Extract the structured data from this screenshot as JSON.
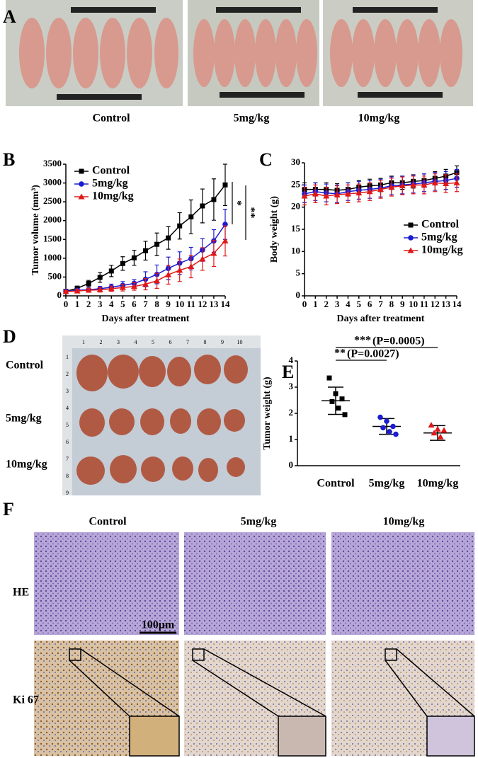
{
  "panel_labels": [
    "A",
    "B",
    "C",
    "D",
    "E",
    "F"
  ],
  "panel_a": {
    "groups": [
      "Control",
      "5mg/kg",
      "10mg/kg"
    ]
  },
  "chart_data": [
    {
      "type": "line",
      "y_label": "Tumor volume (mm³)",
      "x_label": "Days after treatment",
      "x": [
        0,
        1,
        2,
        3,
        4,
        5,
        6,
        7,
        8,
        9,
        10,
        11,
        12,
        13,
        14
      ],
      "xlim": [
        0,
        14
      ],
      "xticks": [
        0,
        1,
        2,
        3,
        4,
        5,
        6,
        7,
        8,
        9,
        10,
        11,
        12,
        13,
        14
      ],
      "ylim": [
        0,
        3500
      ],
      "yticks": [
        0,
        500,
        1000,
        1500,
        2000,
        2500,
        3000,
        3500
      ],
      "legend": "upper left",
      "significance": [
        "*",
        "**"
      ],
      "series": [
        {
          "name": "Control",
          "color": "#000000",
          "marker": "square",
          "values": [
            120,
            200,
            330,
            490,
            660,
            860,
            1010,
            1200,
            1370,
            1540,
            1860,
            2100,
            2390,
            2560,
            2950
          ],
          "errors": [
            50,
            60,
            80,
            130,
            150,
            180,
            200,
            250,
            300,
            300,
            350,
            450,
            450,
            550,
            550
          ]
        },
        {
          "name": "5mg/kg",
          "color": "#1c1cd0",
          "marker": "circle",
          "values": [
            120,
            150,
            160,
            190,
            230,
            280,
            330,
            440,
            570,
            730,
            870,
            990,
            1220,
            1460,
            1900
          ],
          "errors": [
            30,
            40,
            50,
            60,
            80,
            100,
            100,
            200,
            250,
            300,
            300,
            300,
            300,
            300,
            400
          ]
        },
        {
          "name": "10mg/kg",
          "color": "#e01818",
          "marker": "triangle",
          "values": [
            110,
            130,
            150,
            160,
            190,
            220,
            250,
            310,
            400,
            560,
            680,
            780,
            980,
            1130,
            1460
          ],
          "errors": [
            30,
            40,
            50,
            60,
            70,
            90,
            100,
            150,
            200,
            250,
            300,
            300,
            300,
            350,
            400
          ]
        }
      ]
    },
    {
      "type": "line",
      "y_label": "Body weight (g)",
      "x_label": "Days after treatment",
      "x": [
        0,
        1,
        2,
        3,
        4,
        5,
        6,
        7,
        8,
        9,
        10,
        11,
        12,
        13,
        14
      ],
      "xlim": [
        0,
        14
      ],
      "xticks": [
        0,
        1,
        2,
        3,
        4,
        5,
        6,
        7,
        8,
        9,
        10,
        11,
        12,
        13,
        14
      ],
      "ylim": [
        0,
        30
      ],
      "yticks": [
        0,
        5,
        10,
        15,
        20,
        25,
        30
      ],
      "legend": "lower right",
      "series": [
        {
          "name": "Control",
          "color": "#000000",
          "marker": "square",
          "values": [
            24,
            24,
            24,
            23.8,
            24,
            24.5,
            24.8,
            25,
            25.5,
            25.5,
            25.8,
            26,
            26.5,
            27,
            27.8
          ],
          "errors": [
            1.5,
            1.5,
            1.5,
            1.5,
            1.5,
            1.5,
            1.5,
            1.5,
            1.5,
            1.5,
            1.5,
            1.5,
            1.5,
            1.5,
            1.5
          ]
        },
        {
          "name": "5mg/kg",
          "color": "#1c1cd0",
          "marker": "circle",
          "values": [
            23,
            23.5,
            23.2,
            23,
            23.5,
            23.8,
            24,
            24.3,
            24.8,
            25,
            25.2,
            25.5,
            25.8,
            26,
            26.5
          ],
          "errors": [
            2,
            2,
            2,
            2,
            2,
            2,
            2,
            2,
            2,
            2,
            2,
            2,
            2,
            2,
            2
          ]
        },
        {
          "name": "10mg/kg",
          "color": "#e01818",
          "marker": "triangle",
          "values": [
            22.5,
            23,
            22.5,
            22.8,
            23,
            23.2,
            23.5,
            24,
            24.5,
            24.8,
            25,
            25,
            25.5,
            25.3,
            25.5
          ],
          "errors": [
            2,
            2,
            2,
            2,
            2,
            2,
            2,
            2,
            2,
            2,
            2,
            2,
            2,
            2,
            2
          ]
        }
      ]
    },
    {
      "type": "dot",
      "y_label": "Tumor weight (g)",
      "categories": [
        "Control",
        "5mg/kg",
        "10mg/kg"
      ],
      "ylim": [
        0,
        4
      ],
      "yticks": [
        0,
        1,
        2,
        3,
        4
      ],
      "colors": [
        "#000000",
        "#1c1cd0",
        "#e01818"
      ],
      "markers": [
        "square",
        "circle",
        "triangle"
      ],
      "points": [
        [
          3.35,
          2.75,
          2.55,
          2.45,
          2.2,
          1.95
        ],
        [
          1.85,
          1.7,
          1.5,
          1.45,
          1.3,
          1.2
        ],
        [
          1.55,
          1.4,
          1.35,
          1.25,
          1.1
        ]
      ],
      "means": [
        2.48,
        1.5,
        1.25
      ],
      "sds": [
        0.52,
        0.3,
        0.28
      ],
      "comparisons": [
        {
          "stars": "**",
          "p": "(P=0.0027)"
        },
        {
          "stars": "***",
          "p": "(P=0.0005)"
        }
      ]
    }
  ],
  "panel_d": {
    "rows": [
      "Control",
      "5mg/kg",
      "10mg/kg"
    ],
    "ruler_top": [
      1,
      2,
      3,
      4,
      5,
      6,
      7,
      8,
      9,
      10
    ],
    "ruler_left": [
      1,
      2,
      3,
      4,
      5,
      6,
      7,
      8,
      9
    ]
  },
  "panel_f": {
    "columns": [
      "Control",
      "5mg/kg",
      "10mg/kg"
    ],
    "rows": [
      "HE",
      "Ki 67"
    ],
    "scale_bar": "100μm"
  }
}
